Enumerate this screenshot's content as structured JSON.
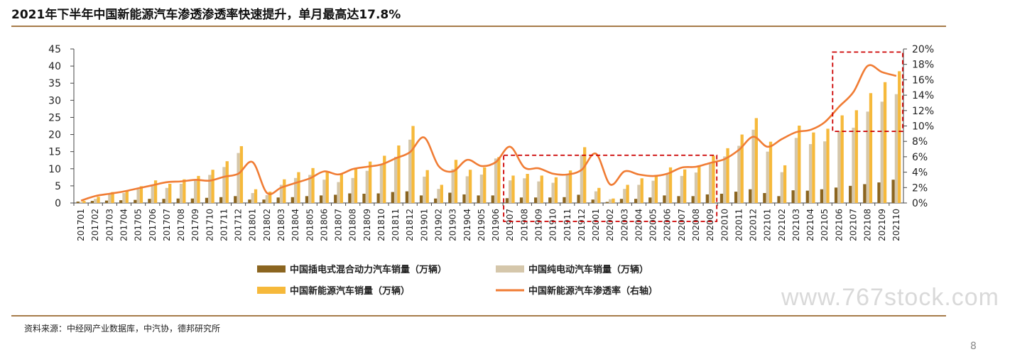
{
  "title": "2021年下半年中国新能源汽车渗透渗透率快速提升，单月最高达17.8%",
  "source": "资料来源：中经网产业数据库，中汽协，德邦研究所",
  "watermark": "www.767stock.com",
  "page_number": "8",
  "colors": {
    "phev": "#8b6520",
    "bev": "#d5c7ab",
    "nev": "#f6b93b",
    "penetration": "#f07c34",
    "rule": "#a67b49",
    "highlight_box": "#cc0000"
  },
  "chart_data": {
    "type": "bar+line",
    "categories": [
      "201701",
      "201702",
      "201703",
      "201704",
      "201705",
      "201706",
      "201707",
      "201708",
      "201709",
      "201710",
      "201711",
      "201712",
      "201801",
      "201802",
      "201803",
      "201804",
      "201805",
      "201806",
      "201807",
      "201808",
      "201809",
      "201810",
      "201811",
      "201812",
      "201901",
      "201902",
      "201903",
      "201904",
      "201905",
      "201906",
      "201907",
      "201908",
      "201909",
      "201910",
      "201911",
      "201912",
      "202001",
      "202002",
      "202003",
      "202004",
      "202005",
      "202006",
      "202007",
      "202008",
      "202009",
      "202010",
      "202011",
      "202012",
      "202101",
      "202102",
      "202103",
      "202104",
      "202105",
      "202106",
      "202107",
      "202108",
      "202109",
      "202110"
    ],
    "y_left": {
      "ticks": [
        "0",
        "5",
        "10",
        "15",
        "20",
        "25",
        "30",
        "35",
        "40",
        "45"
      ],
      "range": [
        0,
        45
      ]
    },
    "y_right": {
      "ticks": [
        "0%",
        "2%",
        "4%",
        "6%",
        "8%",
        "10%",
        "12%",
        "14%",
        "16%",
        "18%",
        "20%"
      ],
      "range": [
        0,
        20
      ]
    },
    "series": [
      {
        "name": "中国插电式混合动力汽车销量（万辆）",
        "type": "bar",
        "axis": "left",
        "values": [
          0.4,
          0.6,
          0.7,
          0.8,
          0.9,
          1.2,
          1.2,
          1.3,
          1.3,
          1.5,
          1.7,
          2.0,
          1.0,
          1.0,
          1.6,
          1.7,
          2.0,
          2.2,
          2.4,
          2.8,
          2.7,
          2.8,
          3.2,
          3.4,
          2.2,
          1.3,
          3.0,
          2.5,
          2.2,
          2.2,
          1.4,
          1.6,
          1.6,
          1.6,
          1.7,
          2.4,
          1.0,
          0.3,
          1.2,
          1.2,
          1.6,
          2.2,
          2.0,
          2.0,
          2.5,
          2.7,
          3.3,
          4.0,
          2.9,
          2.0,
          3.7,
          3.6,
          4.0,
          4.5,
          5.0,
          5.5,
          6.0,
          6.8
        ]
      },
      {
        "name": "中国纯电动汽车销量（万辆）",
        "type": "bar",
        "axis": "left",
        "values": [
          0.3,
          1.2,
          2.5,
          2.9,
          4.0,
          5.4,
          4.4,
          5.6,
          6.6,
          8.2,
          10.5,
          14.6,
          2.9,
          2.3,
          5.3,
          7.3,
          8.2,
          6.8,
          6.1,
          7.3,
          9.4,
          11.3,
          13.5,
          18.5,
          7.7,
          4.1,
          9.9,
          7.8,
          8.3,
          13.0,
          6.6,
          7.2,
          6.3,
          5.9,
          8.3,
          14.0,
          3.4,
          1.1,
          4.1,
          5.3,
          6.5,
          8.3,
          7.9,
          8.9,
          11.4,
          13.6,
          16.7,
          21.4,
          15.0,
          9.0,
          19.0,
          17.2,
          18.0,
          21.0,
          22.0,
          26.7,
          29.6,
          31.8
        ]
      },
      {
        "name": "中国新能源汽车销量（万辆）",
        "type": "bar",
        "axis": "left",
        "values": [
          0.6,
          1.8,
          3.2,
          3.7,
          4.9,
          6.6,
          5.6,
          6.9,
          7.9,
          9.7,
          12.2,
          16.6,
          4.0,
          3.3,
          6.9,
          9.0,
          10.2,
          9.0,
          8.5,
          10.1,
          12.1,
          13.8,
          16.8,
          22.5,
          9.6,
          5.3,
          12.6,
          9.7,
          10.4,
          13.4,
          8.0,
          8.5,
          8.0,
          7.5,
          9.5,
          16.3,
          4.4,
          1.3,
          5.3,
          7.2,
          8.2,
          10.4,
          9.8,
          10.9,
          13.8,
          16.0,
          20.0,
          24.8,
          17.9,
          11.0,
          22.6,
          20.6,
          21.7,
          25.6,
          27.1,
          32.1,
          35.3,
          38.5
        ]
      },
      {
        "name": "中国新能源汽车渗透率（右轴）",
        "type": "line",
        "axis": "right",
        "values": [
          0.3,
          0.9,
          1.2,
          1.5,
          1.9,
          2.3,
          2.7,
          2.8,
          3.0,
          2.9,
          3.4,
          3.8,
          5.3,
          1.3,
          2.0,
          2.6,
          3.2,
          4.1,
          3.7,
          4.4,
          4.7,
          5.0,
          5.8,
          6.6,
          8.5,
          4.8,
          4.1,
          5.6,
          4.8,
          5.3,
          7.3,
          4.6,
          4.5,
          3.8,
          3.7,
          4.3,
          6.4,
          2.4,
          4.1,
          3.7,
          3.5,
          3.8,
          4.6,
          4.7,
          5.2,
          5.7,
          6.9,
          8.6,
          7.3,
          8.3,
          9.2,
          9.5,
          10.5,
          12.5,
          14.4,
          17.8,
          17.0,
          16.5
        ]
      }
    ],
    "highlight_boxes": [
      {
        "from": "201907",
        "to": "202009"
      },
      {
        "from": "202106",
        "to": "202110"
      }
    ],
    "legend_position": "bottom",
    "grid": false
  }
}
